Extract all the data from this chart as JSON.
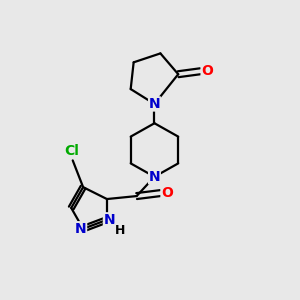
{
  "background_color": "#e8e8e8",
  "colors": {
    "N": "#0000cc",
    "O": "#ff0000",
    "Cl": "#00aa00",
    "bond": "#000000"
  },
  "bond_lw": 1.6,
  "font_size": 10
}
